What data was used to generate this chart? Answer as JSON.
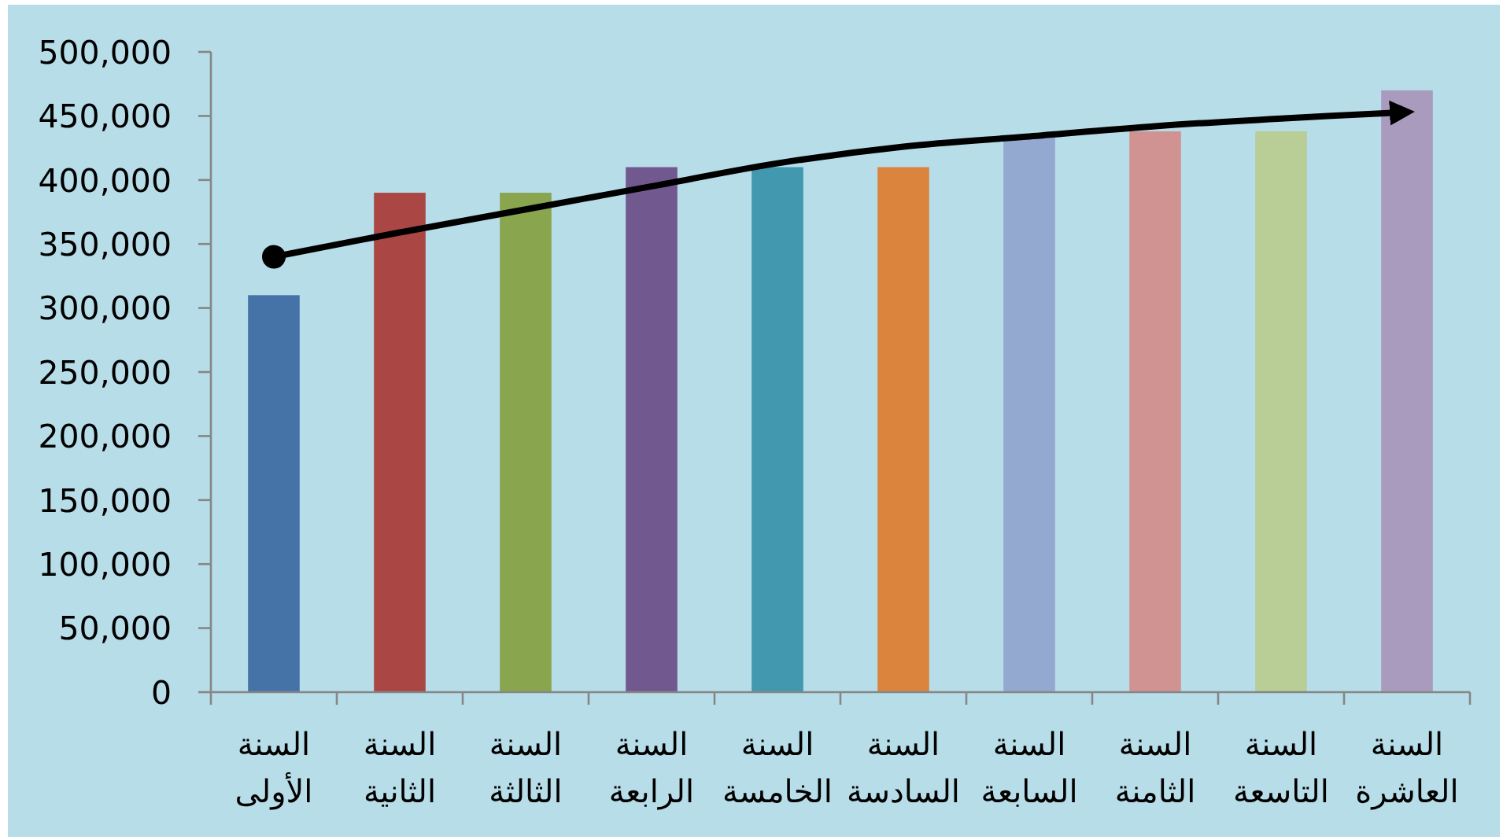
{
  "chart_data": {
    "type": "bar",
    "categories": [
      "السنة الأولى",
      "السنة الثانية",
      "السنة الثالثة",
      "السنة الرابعة",
      "السنة الخامسة",
      "السنة السادسة",
      "السنة السابعة",
      "السنة الثامنة",
      "السنة التاسعة",
      "السنة العاشرة"
    ],
    "series": [
      {
        "colors": [
          "#4572a7",
          "#aa4643",
          "#89a54e",
          "#71588f",
          "#4198af",
          "#db843d",
          "#93a9cf",
          "#d19392",
          "#b9cd96",
          "#a99bbd"
        ],
        "values": [
          310000,
          390000,
          390000,
          410000,
          410000,
          410000,
          435000,
          438000,
          438000,
          470000
        ]
      },
      {
        "type": "line",
        "color": "#000000",
        "values": [
          340000,
          359000,
          377000,
          395000,
          413000,
          426000,
          434000,
          442000,
          448000,
          453000
        ]
      }
    ],
    "ylim": [
      0,
      500000
    ],
    "yticks": [
      0,
      {
        "value": 50000,
        "label": "50,000"
      },
      {
        "value": 100000,
        "label": "100,000"
      },
      {
        "value": 150000,
        "label": "150,000"
      },
      {
        "value": 200000,
        "label": "200,000"
      },
      {
        "value": 250000,
        "label": "250,000"
      },
      {
        "value": 300000,
        "label": "300,000"
      },
      {
        "value": 350000,
        "label": "350,000"
      },
      {
        "value": 400000,
        "label": "400,000"
      },
      {
        "value": 450000,
        "label": "450,000"
      },
      {
        "value": 500000,
        "label": "500,000"
      }
    ]
  }
}
